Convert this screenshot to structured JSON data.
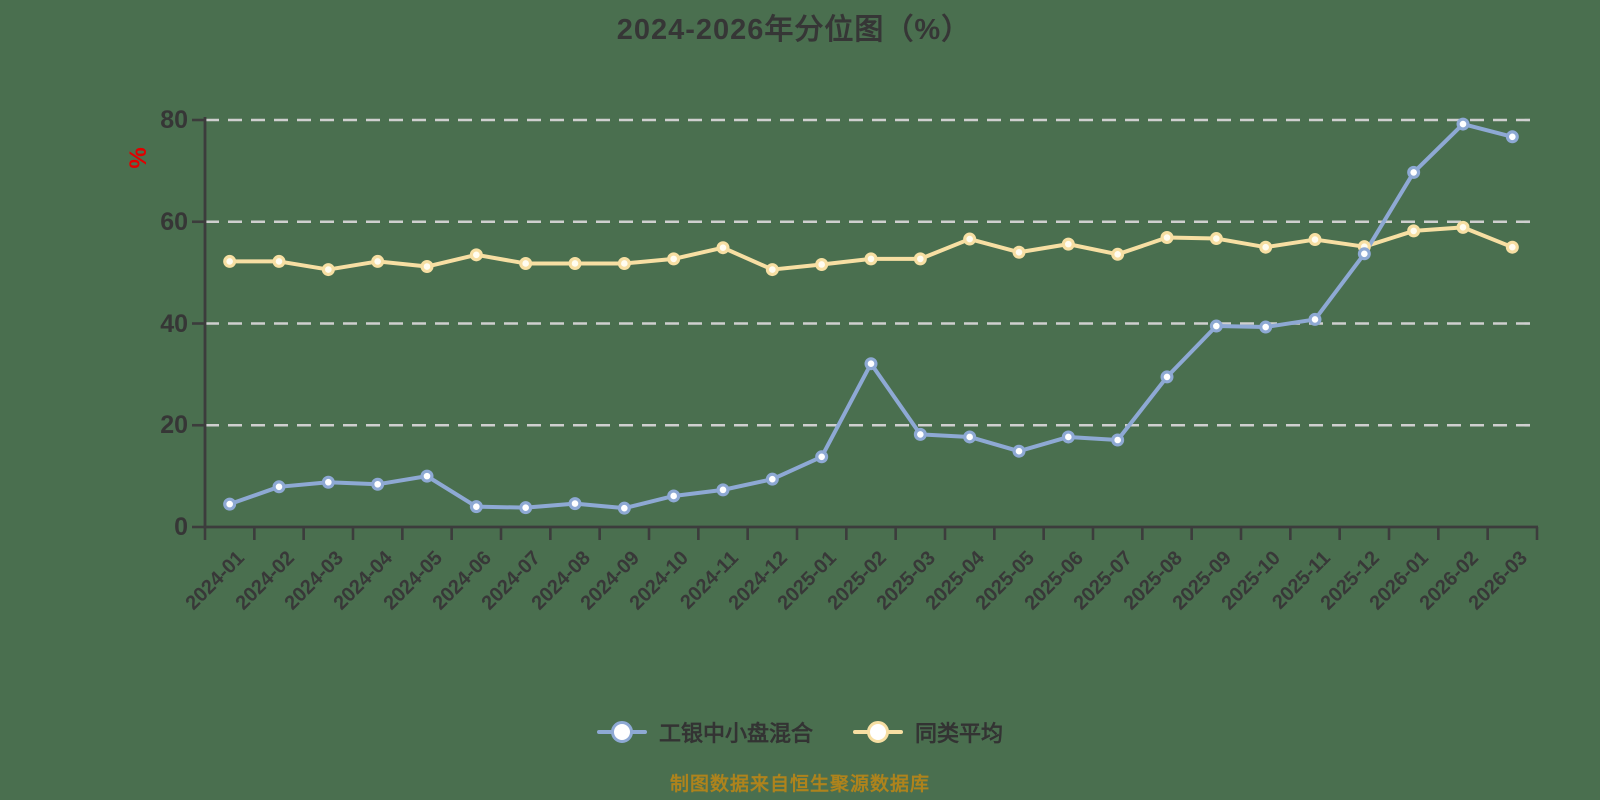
{
  "title": "2024-2026年分位图（%）",
  "y_axis": {
    "unit": "%",
    "unit_color": "#e00000",
    "ticks": [
      0,
      20,
      40,
      60,
      80
    ]
  },
  "footer": {
    "text": "制图数据来自恒生聚源数据库",
    "color": "#ae831c"
  },
  "legend": {
    "position": "bottom",
    "items": [
      {
        "label": "工银中小盘混合",
        "color": "#8ea9d4"
      },
      {
        "label": "同类平均",
        "color": "#f7dfa3"
      }
    ]
  },
  "colors": {
    "background": "#4a6f4f",
    "axis": "#3c3c3c",
    "gridline": "#cfcfcf",
    "text": "#363636"
  },
  "chart_data": {
    "type": "line",
    "title": "2024-2026年分位图（%）",
    "xlabel": "",
    "ylabel": "%",
    "ylim": [
      0,
      80
    ],
    "yticks": [
      0,
      20,
      40,
      60,
      80
    ],
    "grid": "horizontal dashed",
    "legend_position": "bottom",
    "x_label_rotation": 45,
    "marker": "circle-white-fill",
    "categories": [
      "2024-01",
      "2024-02",
      "2024-03",
      "2024-04",
      "2024-05",
      "2024-06",
      "2024-07",
      "2024-08",
      "2024-09",
      "2024-10",
      "2024-11",
      "2024-12",
      "2025-01",
      "2025-02",
      "2025-03",
      "2025-04",
      "2025-05",
      "2025-06",
      "2025-07",
      "2025-08",
      "2025-09",
      "2025-10",
      "2025-11",
      "2025-12",
      "2026-01",
      "2026-02",
      "2026-03"
    ],
    "series": [
      {
        "name": "工银中小盘混合",
        "color": "#8ea9d4",
        "marker_fill": "#ffffff",
        "values": [
          4.5,
          7.9,
          8.8,
          8.4,
          10.0,
          4.0,
          3.8,
          4.6,
          3.7,
          6.1,
          7.3,
          9.4,
          13.8,
          32.1,
          18.2,
          17.7,
          14.9,
          17.7,
          17.1,
          29.5,
          39.5,
          39.3,
          40.8,
          53.7,
          69.7,
          79.2,
          76.7
        ]
      },
      {
        "name": "同类平均",
        "color": "#f7dfa3",
        "marker_fill": "#fffcf0",
        "values": [
          52.2,
          52.2,
          50.6,
          52.2,
          51.2,
          53.5,
          51.8,
          51.8,
          51.8,
          52.7,
          54.9,
          50.6,
          51.6,
          52.7,
          52.7,
          56.6,
          54.0,
          55.6,
          53.6,
          56.9,
          56.7,
          55.0,
          56.5,
          55.1,
          58.2,
          58.9,
          55.0
        ]
      }
    ]
  }
}
